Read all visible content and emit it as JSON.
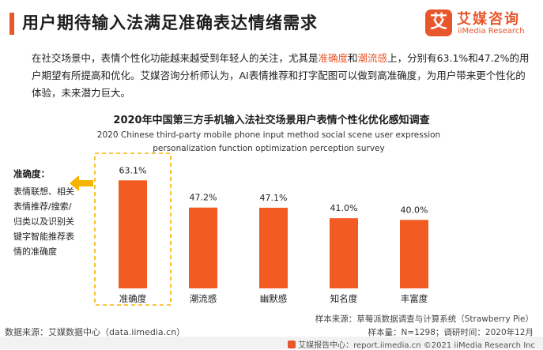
{
  "header": {
    "title": "用户期待输入法满足准确表达情绪需求"
  },
  "logo": {
    "mark": "艾",
    "name_cn": "艾媒咨询",
    "name_en": "iiMedia Research"
  },
  "intro": {
    "part1": "在社交场景中，表情个性化功能越来越受到年轻人的关注，尤其是",
    "highlight1": "准确度",
    "and": "和",
    "highlight2": "潮流感",
    "part2": "上，分别有63.1%和47.2%的用户期望有所提高和优化。艾媒咨询分析师认为，AI表情推荐和打字配图可以做到高准确度，为用户带来更个性化的体验，未来潜力巨大。"
  },
  "annotation": {
    "title": "准确度：",
    "body": "表情联想、相关表情推荐/搜索/归类以及识别关键字智能推荐表情的准确度"
  },
  "source": {
    "data_source": "数据来源：艾媒数据中心（data.iimedia.cn）",
    "sample_source": "样本来源：草莓派数据调查与计算系统（Strawberry Pie）",
    "sample_info": "样本量：N=1298；调研时间：2020年12月"
  },
  "footer": {
    "text": "艾媒报告中心：report.iimedia.cn  ©2021 iiMedia Research Inc"
  },
  "colors": {
    "accent": "#e8572c",
    "bar": "#f25c22",
    "highlight_box": "#f5b400",
    "arrow": "#f5b400"
  },
  "chart_data": {
    "type": "bar",
    "title": "2020年中国第三方手机输入法社交场景用户表情个性化优化感知调查",
    "subtitle": "2020 Chinese third-party mobile phone input method social scene user expression personalization function optimization perception survey",
    "categories": [
      "准确度",
      "潮流感",
      "幽默感",
      "知名度",
      "丰富度"
    ],
    "values": [
      63.1,
      47.2,
      47.1,
      41.0,
      40.0
    ],
    "value_labels": [
      "63.1%",
      "47.2%",
      "47.1%",
      "41.0%",
      "40.0%"
    ],
    "ylim": [
      0,
      70
    ],
    "highlighted_category": "准确度"
  }
}
